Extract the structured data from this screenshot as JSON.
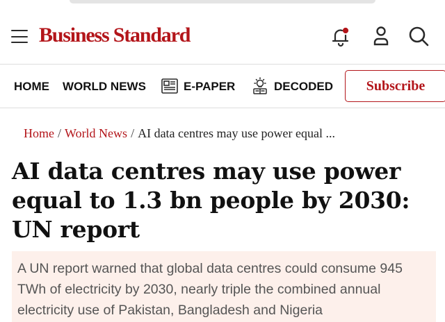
{
  "header": {
    "brand": "Business Standard",
    "icons": [
      "menu-icon",
      "notification-bell-icon",
      "user-icon",
      "search-icon"
    ],
    "brand_color": "#b3151a"
  },
  "nav": {
    "home": "HOME",
    "world_news": "WORLD NEWS",
    "epaper": "E-PAPER",
    "decoded": "DECODED",
    "subscribe": "Subscribe"
  },
  "breadcrumb": {
    "home": "Home",
    "section": "World News",
    "current": "AI data centres may use power equal ..."
  },
  "article": {
    "headline": "AI data centres may use power equal to 1.3 bn people by 2030: UN report",
    "summary": "A UN report warned that global data centres could consume 945 TWh of electricity by 2030, nearly triple the combined annual electricity use of Pakistan, Bangladesh and Nigeria"
  },
  "colors": {
    "accent": "#b3151a",
    "summary_bg": "#fdf0eb"
  }
}
